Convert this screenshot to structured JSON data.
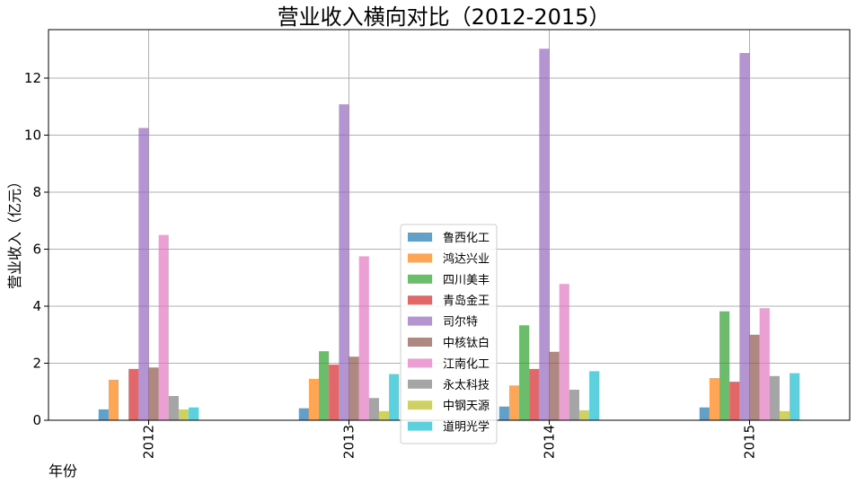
{
  "chart_data": {
    "type": "bar",
    "title": "营业收入横向对比（2012-2015）",
    "xlabel": "年份",
    "ylabel": "营业收入（亿元）",
    "categories": [
      "2012",
      "2013",
      "2014",
      "2015"
    ],
    "ylim": [
      0,
      13.7
    ],
    "yticks": [
      "0",
      "2",
      "4",
      "6",
      "8",
      "10",
      "12"
    ],
    "grid": true,
    "legend_position": "bottom-center",
    "series": [
      {
        "name": "鲁西化工",
        "color": "#1f77b4",
        "values": [
          0.38,
          0.42,
          0.48,
          0.45
        ]
      },
      {
        "name": "鸿达兴业",
        "color": "#ff7f0e",
        "values": [
          1.42,
          1.45,
          1.22,
          1.48
        ]
      },
      {
        "name": "四川美丰",
        "color": "#2ca02c",
        "values": [
          0.0,
          2.42,
          3.33,
          3.82
        ]
      },
      {
        "name": "青岛金王",
        "color": "#d62728",
        "values": [
          1.8,
          1.95,
          1.8,
          1.35
        ]
      },
      {
        "name": "司尔特",
        "color": "#9467bd",
        "values": [
          10.25,
          11.08,
          13.03,
          12.88
        ]
      },
      {
        "name": "中核钛白",
        "color": "#8c564b",
        "values": [
          1.85,
          2.23,
          2.4,
          3.0
        ]
      },
      {
        "name": "江南化工",
        "color": "#e377c2",
        "values": [
          6.5,
          5.75,
          4.78,
          3.93
        ]
      },
      {
        "name": "永太科技",
        "color": "#7f7f7f",
        "values": [
          0.85,
          0.78,
          1.07,
          1.55
        ]
      },
      {
        "name": "中钢天源",
        "color": "#bcbd22",
        "values": [
          0.38,
          0.32,
          0.35,
          0.32
        ]
      },
      {
        "name": "道明光学",
        "color": "#17becf",
        "values": [
          0.45,
          1.62,
          1.72,
          1.65
        ]
      }
    ]
  }
}
